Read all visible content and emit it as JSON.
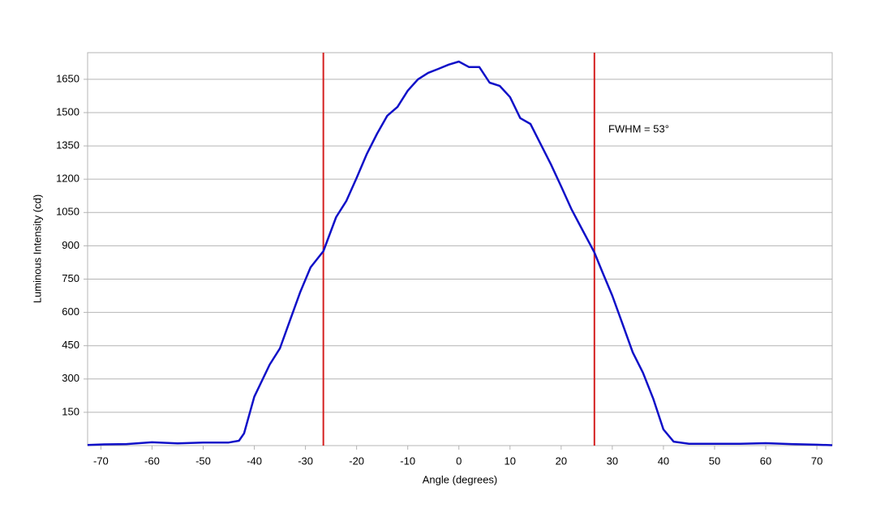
{
  "chart_data": {
    "type": "line",
    "xlabel": "Angle (degrees)",
    "ylabel": "Luminous Intensity (cd)",
    "annotation": "FWHM = 53°",
    "xlim": [
      -72.6,
      73
    ],
    "ylim": [
      0,
      1770
    ],
    "xticks": [
      -70,
      -60,
      -50,
      -40,
      -30,
      -20,
      -10,
      0,
      10,
      20,
      30,
      40,
      50,
      60,
      70
    ],
    "yticks": [
      150,
      300,
      450,
      600,
      750,
      900,
      1050,
      1200,
      1350,
      1500,
      1650
    ],
    "grid": true,
    "vlines": [
      -26.5,
      26.5
    ],
    "vline_color": "#d42020",
    "series": [
      {
        "name": "Luminous Intensity",
        "color": "#1010c8",
        "x": [
          -72.6,
          -70,
          -65,
          -60,
          -55,
          -50,
          -45,
          -43,
          -42,
          -40,
          -37,
          -35,
          -33,
          -31,
          -29,
          -26.5,
          -24,
          -22,
          -20,
          -18,
          -16,
          -14,
          -12,
          -10,
          -8,
          -6,
          -4,
          -2,
          0,
          2,
          4,
          6,
          8,
          10,
          12,
          14,
          16,
          18,
          20,
          22,
          24,
          26.5,
          28,
          30,
          32,
          34,
          36,
          38,
          40,
          42,
          45,
          50,
          55,
          60,
          65,
          70,
          73
        ],
        "values": [
          3,
          5,
          7,
          15,
          10,
          14,
          14,
          22,
          55,
          220,
          365,
          438,
          566,
          693,
          803,
          876,
          1029,
          1102,
          1205,
          1314,
          1405,
          1486,
          1526,
          1599,
          1650,
          1679,
          1697,
          1716,
          1730,
          1705,
          1705,
          1635,
          1620,
          1570,
          1475,
          1449,
          1358,
          1267,
          1168,
          1066,
          978,
          870,
          785,
          675,
          548,
          420,
          328,
          212,
          73,
          18,
          8,
          8,
          8,
          11,
          7,
          4,
          2
        ]
      }
    ]
  }
}
